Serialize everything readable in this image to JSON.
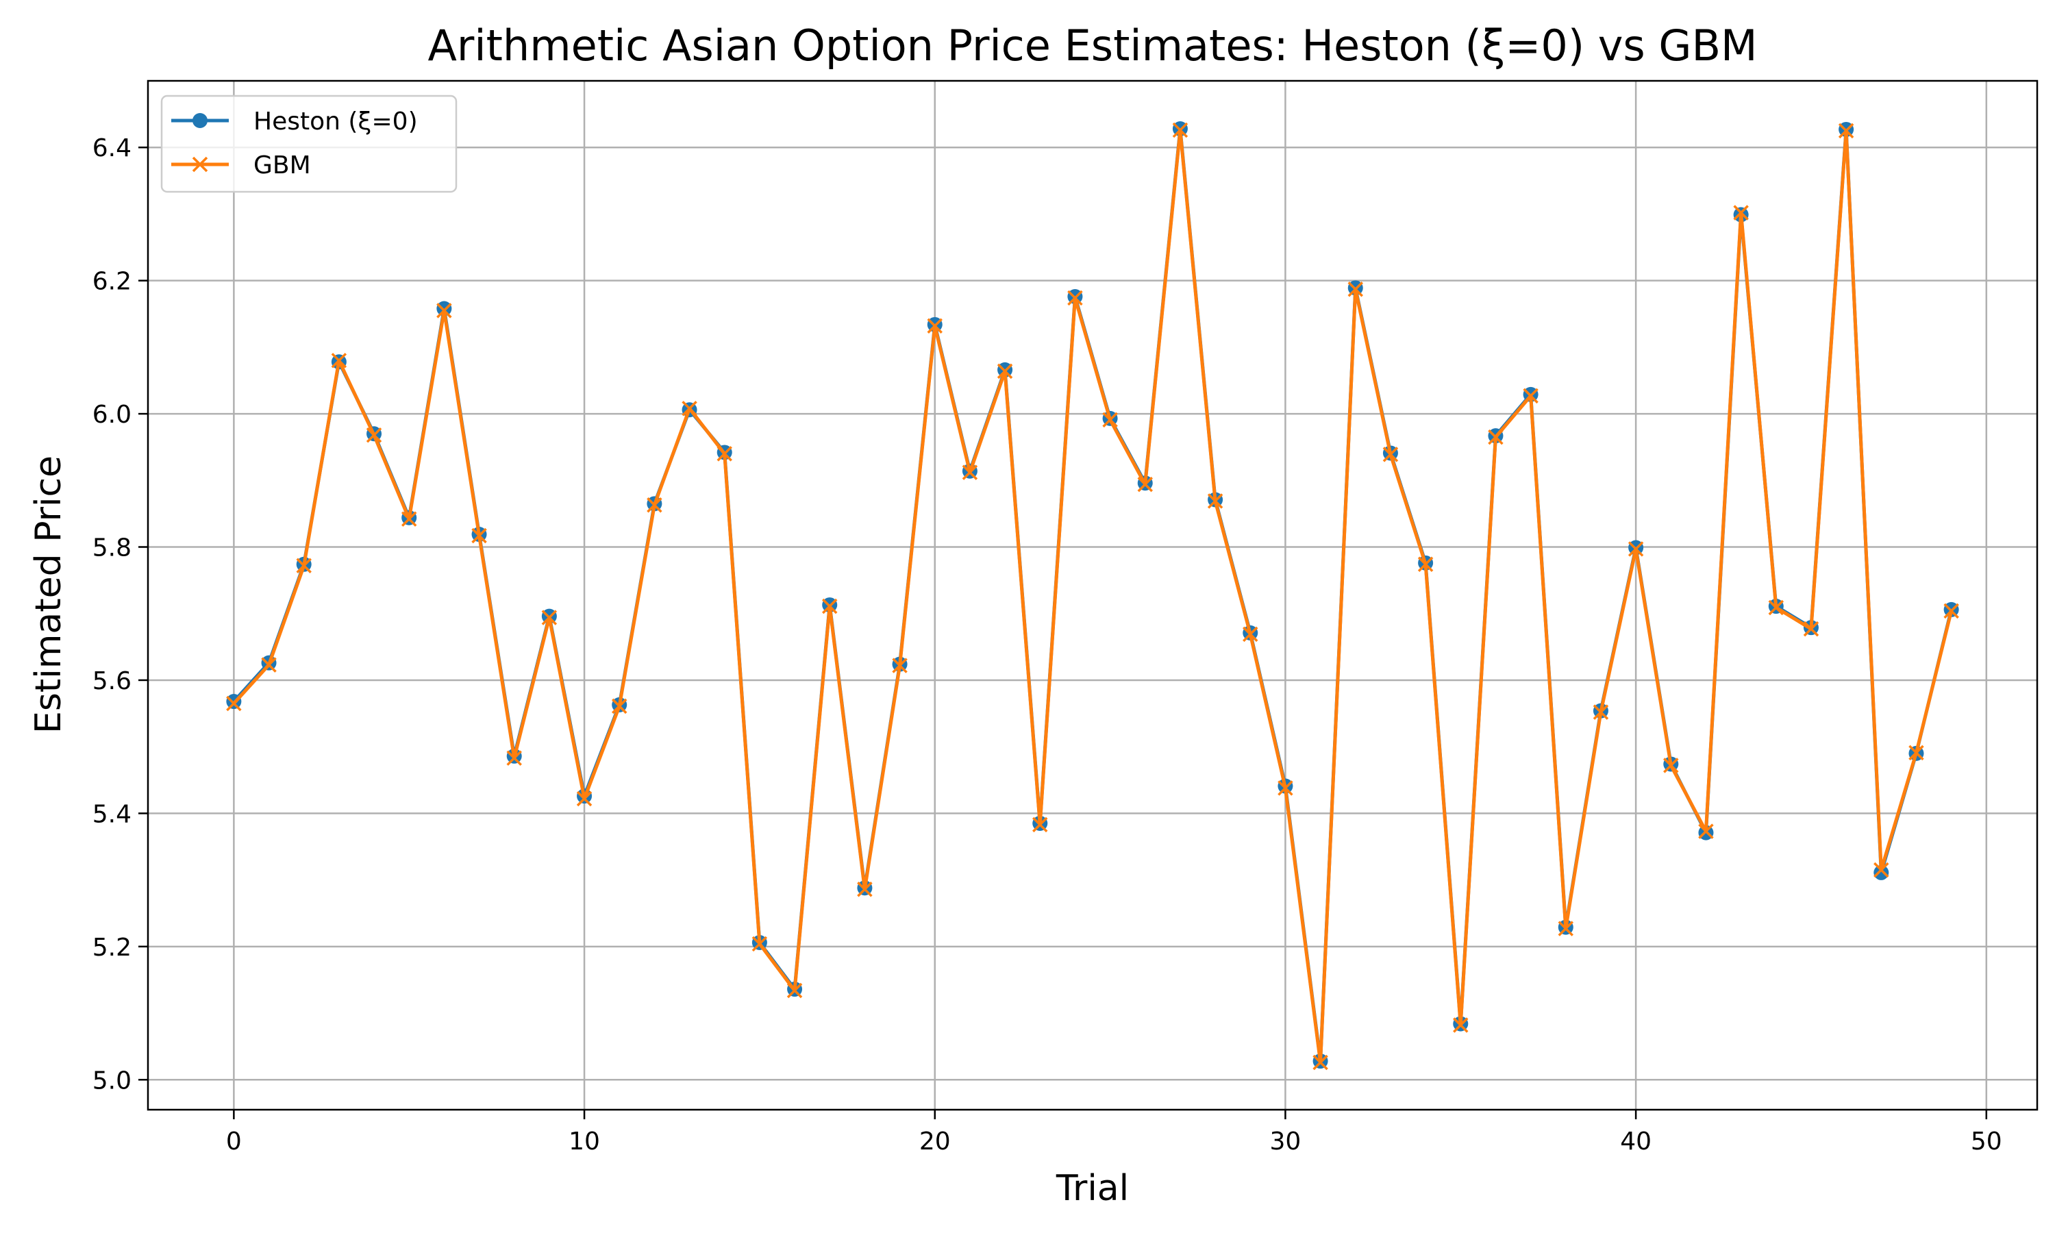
{
  "chart_data": {
    "type": "line",
    "title": "Arithmetic Asian Option Price Estimates: Heston (ξ=0) vs GBM",
    "xlabel": "Trial",
    "ylabel": "Estimated Price",
    "xlim": [
      -2.45,
      51.45
    ],
    "ylim": [
      4.955,
      6.5
    ],
    "xticks": [
      0,
      10,
      20,
      30,
      40,
      50
    ],
    "xtick_labels": [
      "0",
      "10",
      "20",
      "30",
      "40",
      "50"
    ],
    "yticks": [
      5.0,
      5.2,
      5.4,
      5.6,
      5.8,
      6.0,
      6.2,
      6.4
    ],
    "ytick_labels": [
      "5.0",
      "5.2",
      "5.4",
      "5.6",
      "5.8",
      "6.0",
      "6.2",
      "6.4"
    ],
    "grid": true,
    "legend_position": "upper-left",
    "x": [
      0,
      1,
      2,
      3,
      4,
      5,
      6,
      7,
      8,
      9,
      10,
      11,
      12,
      13,
      14,
      15,
      16,
      17,
      18,
      19,
      20,
      21,
      22,
      23,
      24,
      25,
      26,
      27,
      28,
      29,
      30,
      31,
      32,
      33,
      34,
      35,
      36,
      37,
      38,
      39,
      40,
      41,
      42,
      43,
      44,
      45,
      46,
      47,
      48,
      49
    ],
    "series": [
      {
        "name": "Heston (ξ=0)",
        "color": "#1f77b4",
        "marker": "circle",
        "values": [
          5.568,
          5.626,
          5.774,
          6.078,
          5.97,
          5.844,
          6.158,
          5.819,
          5.486,
          5.696,
          5.426,
          5.563,
          5.865,
          6.006,
          5.942,
          5.206,
          5.136,
          5.713,
          5.288,
          5.624,
          6.134,
          5.914,
          6.066,
          5.385,
          6.176,
          5.993,
          5.896,
          6.428,
          5.871,
          5.671,
          5.441,
          5.028,
          6.189,
          5.941,
          5.776,
          5.084,
          5.967,
          6.029,
          5.229,
          5.554,
          5.799,
          5.474,
          5.371,
          6.299,
          5.711,
          5.679,
          6.427,
          5.311,
          5.49,
          5.706
        ]
      },
      {
        "name": "GBM",
        "color": "#ff7f0e",
        "marker": "x",
        "values": [
          5.565,
          5.623,
          5.772,
          6.08,
          5.968,
          5.842,
          6.155,
          5.817,
          5.483,
          5.694,
          5.422,
          5.561,
          5.863,
          6.008,
          5.94,
          5.204,
          5.134,
          5.711,
          5.286,
          5.622,
          6.132,
          5.912,
          6.064,
          5.383,
          6.174,
          5.991,
          5.894,
          6.426,
          5.869,
          5.669,
          5.438,
          5.026,
          6.187,
          5.939,
          5.774,
          5.082,
          5.965,
          6.027,
          5.227,
          5.552,
          5.797,
          5.472,
          5.373,
          6.302,
          5.709,
          5.677,
          6.425,
          5.315,
          5.491,
          5.704
        ]
      }
    ]
  }
}
